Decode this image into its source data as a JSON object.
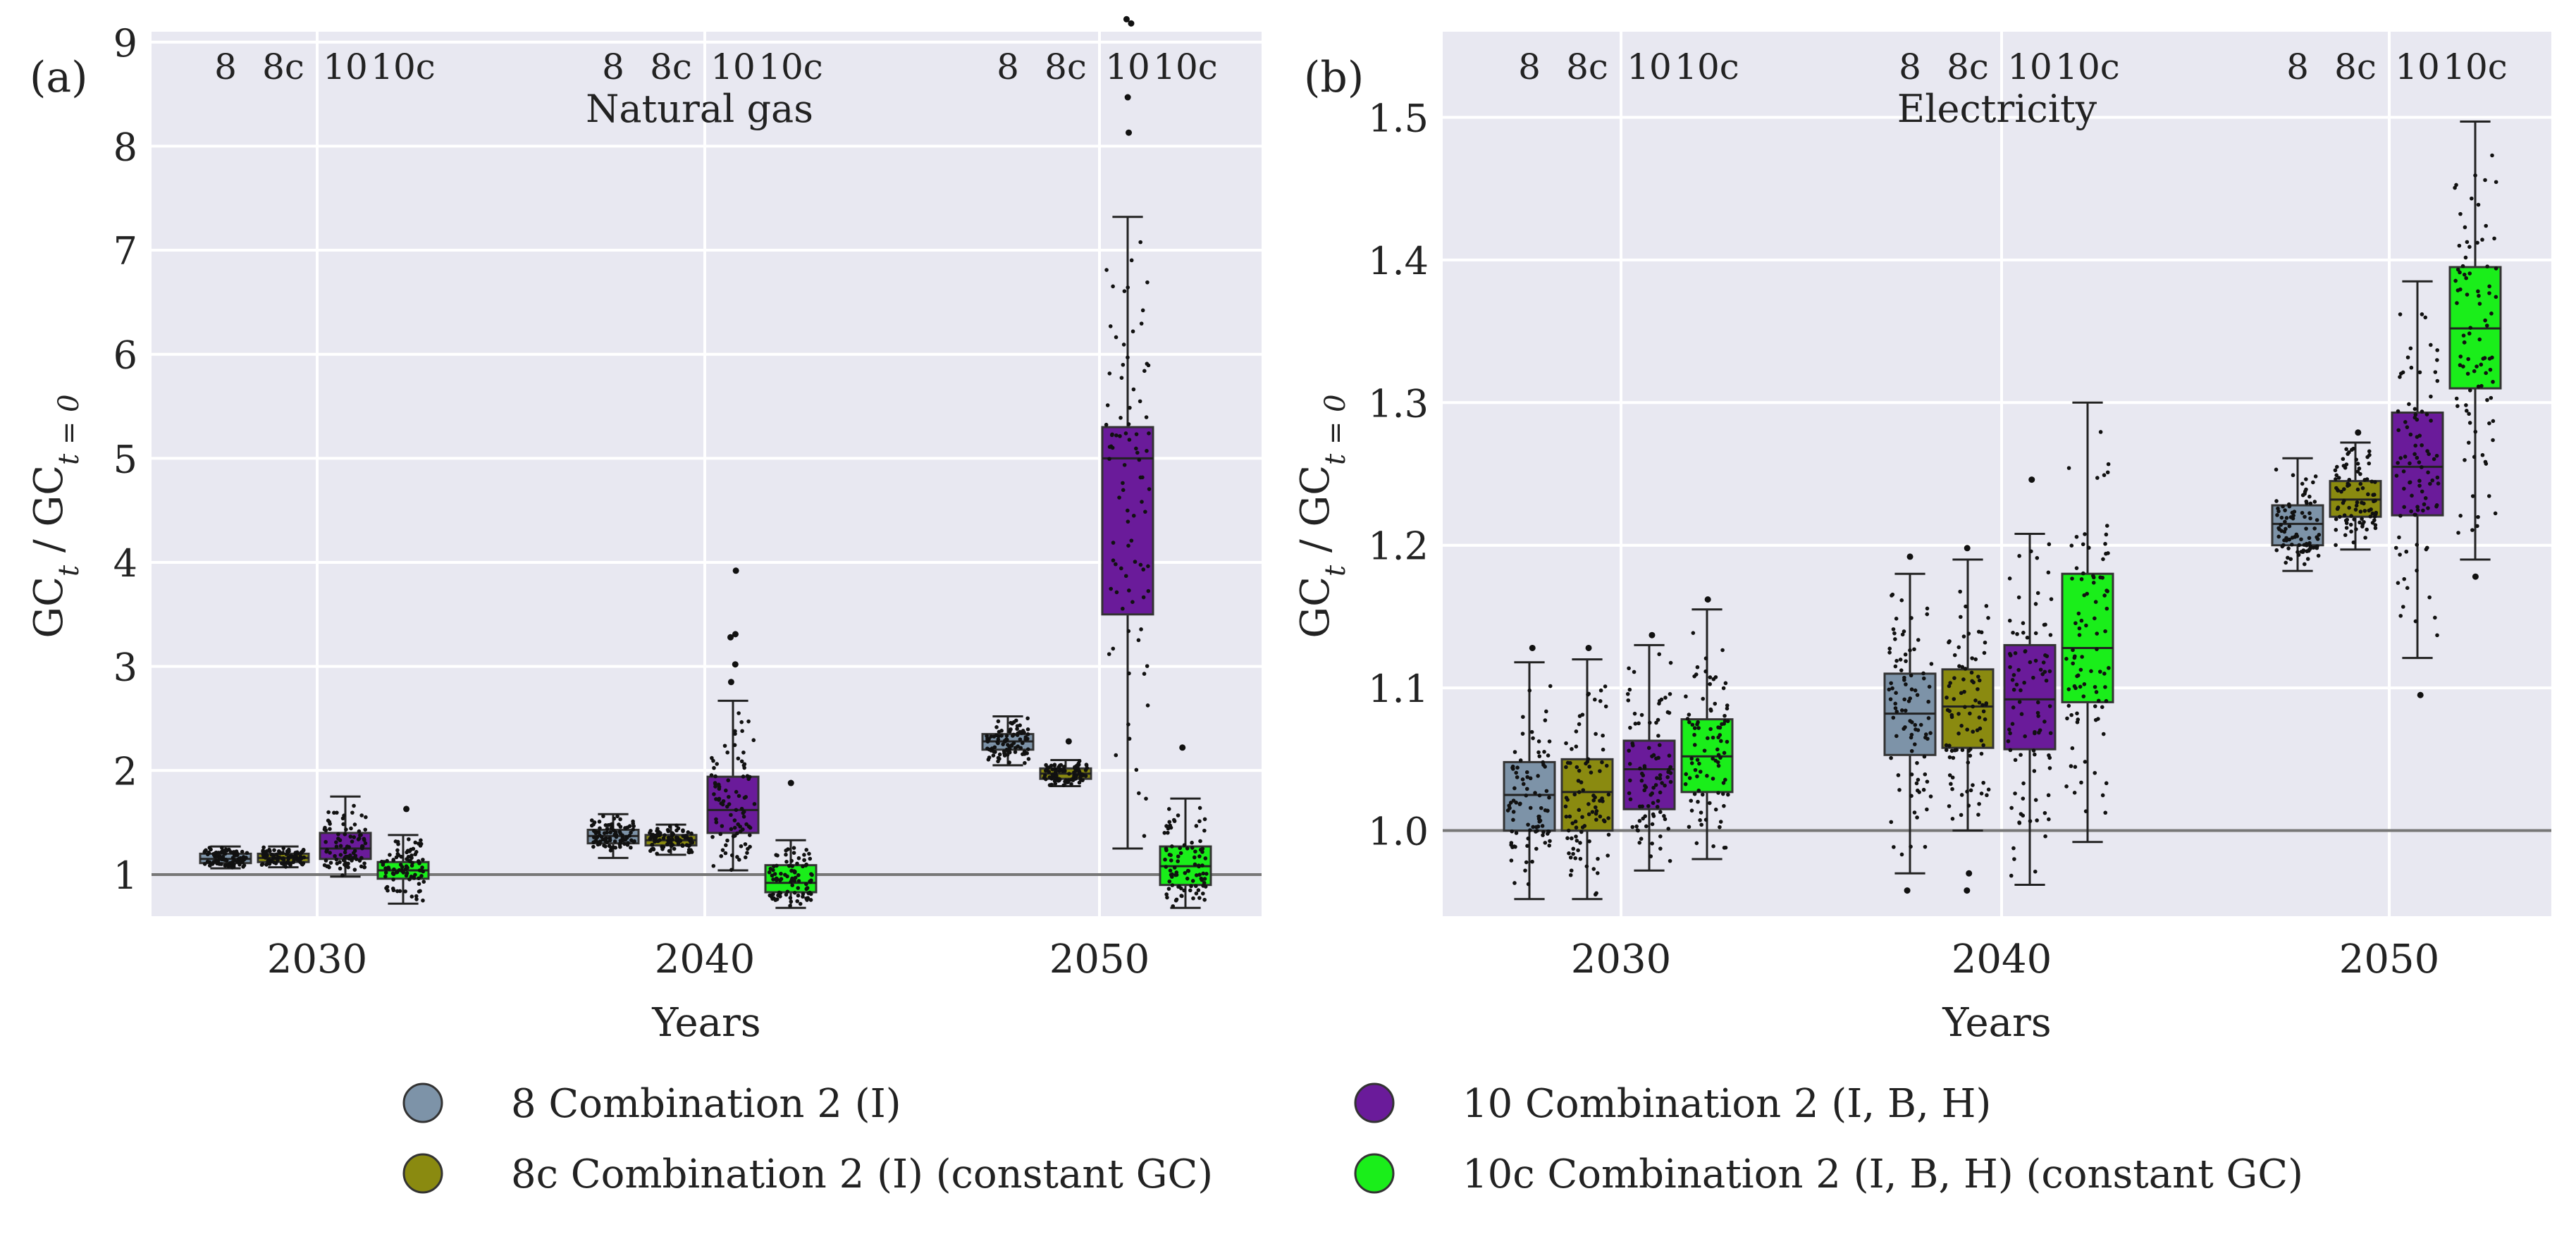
{
  "chart_data": [
    {
      "panel_id": "(a)",
      "type": "box",
      "title": "Natural gas",
      "xlabel": "Years",
      "ylabel": "GC_t / GC_t=0",
      "ylabel_main": "GC",
      "ylabel_sub": "t",
      "ylabel_slash": " / GC",
      "ylabel_sub2": "t = 0",
      "ylim": [
        0.6,
        9.1
      ],
      "yticks": [
        "1",
        "2",
        "3",
        "4",
        "5",
        "6",
        "7",
        "8",
        "9"
      ],
      "reference_line": 1.0,
      "categories": [
        "2030",
        "2040",
        "2050"
      ],
      "series_labels": [
        "8",
        "8c",
        "10",
        "10c"
      ],
      "series": [
        {
          "name": "8",
          "color": "#7d93a8",
          "boxes": [
            {
              "year": "2030",
              "whislo": 1.06,
              "q1": 1.11,
              "med": 1.15,
              "q3": 1.2,
              "whishi": 1.27,
              "outliers": []
            },
            {
              "year": "2040",
              "whislo": 1.16,
              "q1": 1.3,
              "med": 1.37,
              "q3": 1.43,
              "whishi": 1.58,
              "outliers": []
            },
            {
              "year": "2050",
              "whislo": 2.05,
              "q1": 2.2,
              "med": 2.28,
              "q3": 2.35,
              "whishi": 2.52,
              "outliers": []
            }
          ]
        },
        {
          "name": "8c",
          "color": "#8a8a10",
          "boxes": [
            {
              "year": "2030",
              "whislo": 1.07,
              "q1": 1.12,
              "med": 1.16,
              "q3": 1.2,
              "whishi": 1.27,
              "outliers": []
            },
            {
              "year": "2040",
              "whislo": 1.19,
              "q1": 1.28,
              "med": 1.33,
              "q3": 1.38,
              "whishi": 1.48,
              "outliers": []
            },
            {
              "year": "2050",
              "whislo": 1.85,
              "q1": 1.92,
              "med": 1.97,
              "q3": 2.02,
              "whishi": 2.1,
              "outliers": [
                2.28
              ]
            }
          ]
        },
        {
          "name": "10",
          "color": "#6a1b9a",
          "boxes": [
            {
              "year": "2030",
              "whislo": 0.98,
              "q1": 1.15,
              "med": 1.25,
              "q3": 1.4,
              "whishi": 1.75,
              "outliers": []
            },
            {
              "year": "2040",
              "whislo": 1.04,
              "q1": 1.4,
              "med": 1.62,
              "q3": 1.94,
              "whishi": 2.67,
              "outliers": [
                2.85,
                3.02,
                3.28,
                3.31,
                3.92
              ]
            },
            {
              "year": "2050",
              "whislo": 1.25,
              "q1": 3.5,
              "med": 5.0,
              "q3": 5.3,
              "whishi": 7.32,
              "outliers": [
                8.13,
                8.47,
                9.18,
                9.22
              ]
            }
          ]
        },
        {
          "name": "10c",
          "color": "#1aee1a",
          "boxes": [
            {
              "year": "2030",
              "whislo": 0.72,
              "q1": 0.96,
              "med": 1.04,
              "q3": 1.12,
              "whishi": 1.38,
              "outliers": [
                1.63
              ]
            },
            {
              "year": "2040",
              "whislo": 0.68,
              "q1": 0.83,
              "med": 0.92,
              "q3": 1.09,
              "whishi": 1.33,
              "outliers": [
                1.88
              ]
            },
            {
              "year": "2050",
              "whislo": 0.68,
              "q1": 0.9,
              "med": 1.08,
              "q3": 1.27,
              "whishi": 1.73,
              "outliers": [
                2.22
              ]
            }
          ]
        }
      ]
    },
    {
      "panel_id": "(b)",
      "type": "box",
      "title": "Electricity",
      "xlabel": "Years",
      "ylabel": "GC_t / GC_t=0",
      "ylabel_main": "GC",
      "ylabel_sub": "t",
      "ylabel_slash": " / GC",
      "ylabel_sub2": "t = 0",
      "ylim": [
        0.94,
        1.56
      ],
      "yticks": [
        "1.0",
        "1.1",
        "1.2",
        "1.3",
        "1.4",
        "1.5"
      ],
      "reference_line": 1.0,
      "categories": [
        "2030",
        "2040",
        "2050"
      ],
      "series_labels": [
        "8",
        "8c",
        "10",
        "10c"
      ],
      "series": [
        {
          "name": "8",
          "color": "#7d93a8",
          "boxes": [
            {
              "year": "2030",
              "whislo": 0.952,
              "q1": 1.0,
              "med": 1.025,
              "q3": 1.048,
              "whishi": 1.118,
              "outliers": [
                1.128
              ]
            },
            {
              "year": "2040",
              "whislo": 0.97,
              "q1": 1.053,
              "med": 1.082,
              "q3": 1.11,
              "whishi": 1.18,
              "outliers": [
                0.958,
                1.192
              ]
            },
            {
              "year": "2050",
              "whislo": 1.182,
              "q1": 1.2,
              "med": 1.215,
              "q3": 1.228,
              "whishi": 1.261,
              "outliers": []
            }
          ]
        },
        {
          "name": "8c",
          "color": "#8a8a10",
          "boxes": [
            {
              "year": "2030",
              "whislo": 0.952,
              "q1": 1.0,
              "med": 1.027,
              "q3": 1.05,
              "whishi": 1.12,
              "outliers": [
                1.128
              ]
            },
            {
              "year": "2040",
              "whislo": 1.0,
              "q1": 1.058,
              "med": 1.087,
              "q3": 1.113,
              "whishi": 1.19,
              "outliers": [
                0.958,
                0.97,
                1.198
              ]
            },
            {
              "year": "2050",
              "whislo": 1.197,
              "q1": 1.22,
              "med": 1.232,
              "q3": 1.245,
              "whishi": 1.272,
              "outliers": [
                1.279
              ]
            }
          ]
        },
        {
          "name": "10",
          "color": "#6a1b9a",
          "boxes": [
            {
              "year": "2030",
              "whislo": 0.972,
              "q1": 1.015,
              "med": 1.043,
              "q3": 1.063,
              "whishi": 1.13,
              "outliers": [
                1.137
              ]
            },
            {
              "year": "2040",
              "whislo": 0.962,
              "q1": 1.057,
              "med": 1.092,
              "q3": 1.13,
              "whishi": 1.208,
              "outliers": [
                1.246
              ]
            },
            {
              "year": "2050",
              "whislo": 1.121,
              "q1": 1.221,
              "med": 1.255,
              "q3": 1.293,
              "whishi": 1.385,
              "outliers": [
                1.095
              ]
            }
          ]
        },
        {
          "name": "10c",
          "color": "#1aee1a",
          "boxes": [
            {
              "year": "2030",
              "whislo": 0.98,
              "q1": 1.027,
              "med": 1.052,
              "q3": 1.078,
              "whishi": 1.155,
              "outliers": [
                1.162
              ]
            },
            {
              "year": "2040",
              "whislo": 0.992,
              "q1": 1.09,
              "med": 1.128,
              "q3": 1.18,
              "whishi": 1.3,
              "outliers": []
            },
            {
              "year": "2050",
              "whislo": 1.19,
              "q1": 1.31,
              "med": 1.352,
              "q3": 1.395,
              "whishi": 1.497,
              "outliers": [
                1.178
              ]
            }
          ]
        }
      ]
    }
  ],
  "legend": {
    "items": [
      {
        "label": "8 Combination 2 (I)",
        "color": "#7d93a8"
      },
      {
        "label": "10 Combination 2 (I, B, H)",
        "color": "#6a1b9a"
      },
      {
        "label": "8c Combination 2 (I) (constant GC)",
        "color": "#8a8a10"
      },
      {
        "label": "10c Combination 2 (I, B, H) (constant GC)",
        "color": "#1aee1a"
      }
    ]
  },
  "colors": {
    "panel_bg": "#e8e8f1",
    "grid": "#ffffff",
    "reference_line": "#777777"
  }
}
